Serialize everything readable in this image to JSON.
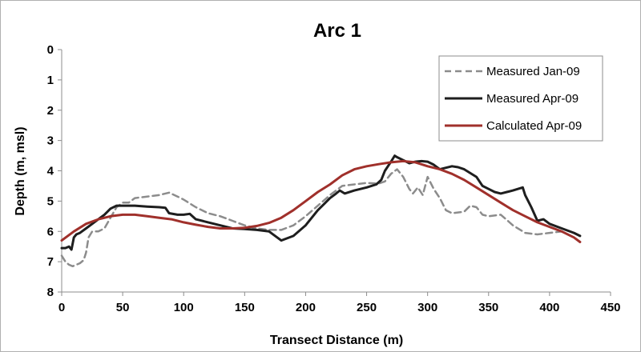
{
  "chart_data": {
    "type": "line",
    "title": "Arc 1",
    "xlabel": "Transect Distance (m)",
    "ylabel": "Depth (m, msl)",
    "xlim": [
      0,
      450
    ],
    "ylim": [
      0,
      8
    ],
    "y_inverted": true,
    "x_ticks": [
      0,
      50,
      100,
      150,
      200,
      250,
      300,
      350,
      400,
      450
    ],
    "y_ticks": [
      0,
      1,
      2,
      3,
      4,
      5,
      6,
      7,
      8
    ],
    "grid": false,
    "legend_position": "top-right",
    "series": [
      {
        "name": "Measured Jan-09",
        "color": "#8c8c8c",
        "dash": "dashed",
        "x": [
          0,
          3,
          6,
          9,
          12,
          15,
          18,
          20,
          22,
          25,
          30,
          35,
          40,
          45,
          50,
          55,
          60,
          70,
          80,
          88,
          95,
          100,
          110,
          120,
          130,
          140,
          150,
          160,
          170,
          180,
          190,
          200,
          210,
          220,
          230,
          240,
          250,
          260,
          265,
          270,
          275,
          280,
          285,
          288,
          292,
          296,
          300,
          305,
          310,
          315,
          320,
          330,
          335,
          340,
          345,
          350,
          360,
          370,
          380,
          390,
          400,
          410,
          420,
          425
        ],
        "y": [
          6.8,
          7.0,
          7.1,
          7.15,
          7.1,
          7.05,
          6.95,
          6.7,
          6.2,
          6.0,
          6.0,
          5.9,
          5.55,
          5.2,
          5.05,
          5.05,
          4.9,
          4.85,
          4.8,
          4.72,
          4.85,
          4.95,
          5.2,
          5.4,
          5.5,
          5.65,
          5.8,
          5.9,
          5.95,
          5.95,
          5.8,
          5.5,
          5.15,
          4.8,
          4.5,
          4.45,
          4.4,
          4.42,
          4.35,
          4.1,
          3.95,
          4.2,
          4.6,
          4.75,
          4.55,
          4.8,
          4.2,
          4.6,
          4.9,
          5.3,
          5.4,
          5.35,
          5.15,
          5.2,
          5.45,
          5.5,
          5.45,
          5.8,
          6.05,
          6.1,
          6.05,
          6.0,
          6.2,
          6.35
        ]
      },
      {
        "name": "Measured Apr-09",
        "color": "#1e1e1e",
        "dash": "solid",
        "x": [
          0,
          3,
          6,
          8,
          10,
          12,
          15,
          20,
          25,
          30,
          35,
          40,
          45,
          50,
          60,
          70,
          80,
          85,
          88,
          95,
          100,
          105,
          110,
          120,
          130,
          140,
          150,
          160,
          170,
          175,
          180,
          190,
          200,
          210,
          215,
          220,
          225,
          228,
          232,
          240,
          250,
          258,
          262,
          265,
          270,
          273,
          275,
          280,
          285,
          290,
          295,
          300,
          305,
          310,
          315,
          320,
          325,
          330,
          340,
          345,
          350,
          355,
          360,
          365,
          370,
          378,
          380,
          385,
          390,
          395,
          400,
          410,
          420,
          425
        ],
        "y": [
          6.55,
          6.55,
          6.5,
          6.6,
          6.2,
          6.1,
          6.05,
          5.9,
          5.75,
          5.6,
          5.45,
          5.25,
          5.15,
          5.15,
          5.15,
          5.18,
          5.2,
          5.22,
          5.4,
          5.45,
          5.45,
          5.42,
          5.6,
          5.7,
          5.8,
          5.9,
          5.92,
          5.95,
          6.0,
          6.15,
          6.3,
          6.15,
          5.8,
          5.3,
          5.1,
          4.9,
          4.75,
          4.65,
          4.75,
          4.65,
          4.55,
          4.45,
          4.3,
          4.0,
          3.7,
          3.5,
          3.55,
          3.65,
          3.75,
          3.7,
          3.68,
          3.7,
          3.8,
          3.95,
          3.9,
          3.85,
          3.88,
          3.95,
          4.2,
          4.5,
          4.6,
          4.7,
          4.75,
          4.7,
          4.65,
          4.55,
          4.8,
          5.2,
          5.65,
          5.6,
          5.75,
          5.9,
          6.05,
          6.15
        ]
      },
      {
        "name": "Calculated Apr-09",
        "color": "#a0302b",
        "dash": "solid",
        "x": [
          0,
          10,
          20,
          30,
          40,
          50,
          60,
          70,
          80,
          90,
          100,
          110,
          120,
          130,
          140,
          150,
          160,
          170,
          180,
          190,
          200,
          210,
          220,
          230,
          240,
          250,
          260,
          270,
          280,
          290,
          300,
          310,
          320,
          330,
          340,
          350,
          360,
          370,
          380,
          390,
          400,
          410,
          420,
          425
        ],
        "y": [
          6.3,
          6.0,
          5.75,
          5.6,
          5.5,
          5.45,
          5.45,
          5.5,
          5.55,
          5.6,
          5.7,
          5.78,
          5.85,
          5.9,
          5.9,
          5.88,
          5.82,
          5.72,
          5.55,
          5.3,
          5.0,
          4.7,
          4.45,
          4.15,
          3.95,
          3.85,
          3.78,
          3.72,
          3.68,
          3.72,
          3.85,
          3.95,
          4.1,
          4.3,
          4.55,
          4.8,
          5.05,
          5.3,
          5.5,
          5.7,
          5.85,
          6.0,
          6.2,
          6.35
        ]
      }
    ]
  }
}
